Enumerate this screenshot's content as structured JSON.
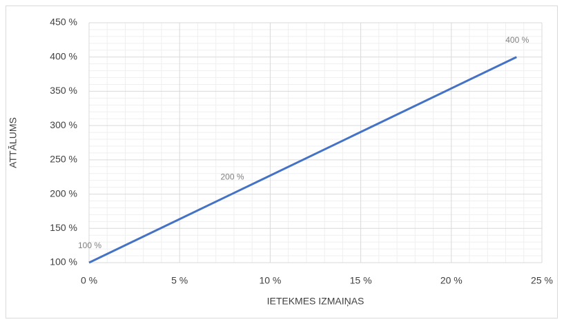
{
  "chart_data": {
    "type": "line",
    "x_label": "IETEKMES IZMAIŅAS",
    "y_label": "ATTĀLUMS",
    "x": [
      0,
      7.87,
      23.6
    ],
    "values": [
      100,
      200,
      400
    ],
    "value_labels": [
      "100 %",
      "200 %",
      "400 %"
    ],
    "color": "#4472c4",
    "xlim": [
      0,
      25
    ],
    "xticks": [
      {
        "value": 0,
        "label": "0 %"
      },
      {
        "value": 5,
        "label": "5 %"
      },
      {
        "value": 10,
        "label": "10 %"
      },
      {
        "value": 15,
        "label": "15 %"
      },
      {
        "value": 20,
        "label": "20 %"
      },
      {
        "value": 25,
        "label": "25 %"
      }
    ],
    "ylim": [
      100,
      450
    ],
    "yticks": [
      {
        "value": 100,
        "label": "100 %"
      },
      {
        "value": 150,
        "label": "150 %"
      },
      {
        "value": 200,
        "label": "200 %"
      },
      {
        "value": 250,
        "label": "250 %"
      },
      {
        "value": 300,
        "label": "300 %"
      },
      {
        "value": 350,
        "label": "350 %"
      },
      {
        "value": 400,
        "label": "400 %"
      },
      {
        "value": 450,
        "label": "450 %"
      }
    ],
    "grid": true,
    "minor_grid": true
  }
}
